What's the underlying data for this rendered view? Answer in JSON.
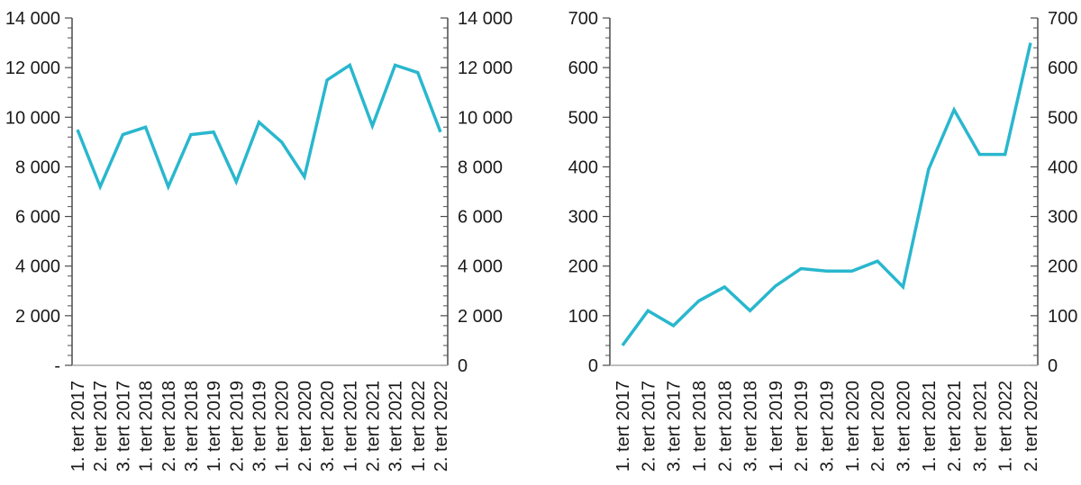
{
  "styles": {
    "line_color": "#29B7CE",
    "axis_color": "#4a4a4a",
    "tick_color": "#6e6e6e",
    "baseline_color": "#a9a9a9",
    "text_color": "#1a1a1a"
  },
  "chart_data": [
    {
      "type": "line",
      "title": "",
      "xlabel": "",
      "ylabel": "",
      "categories": [
        "1. tert 2017",
        "2. tert 2017",
        "3. tert 2017",
        "1. tert 2018",
        "2. tert 2018",
        "3. tert 2018",
        "1. tert 2019",
        "2. tert 2019",
        "3. tert 2019",
        "1. tert 2020",
        "2. tert 2020",
        "3. tert 2020",
        "1. tert 2021",
        "2. tert 2021",
        "3. tert 2021",
        "1. tert 2022",
        "2. tert 2022"
      ],
      "values": [
        9500,
        7200,
        9300,
        9600,
        7200,
        9300,
        9400,
        7400,
        9800,
        9000,
        7600,
        11500,
        12100,
        9650,
        12100,
        11800,
        9400
      ],
      "ylim": [
        0,
        14000
      ],
      "y_major_unit": 2000,
      "y_minor_unit": 400,
      "y_tick_labels_left": [
        "14 000",
        "12 000",
        "10 000",
        "8 000",
        "6 000",
        "4 000",
        "2 000",
        "-"
      ],
      "y_tick_labels_right": [
        "14 000",
        "12 000",
        "10 000",
        "8 000",
        "6 000",
        "4 000",
        "2 000",
        "0"
      ],
      "grid": false,
      "legend": "none"
    },
    {
      "type": "line",
      "title": "",
      "xlabel": "",
      "ylabel": "",
      "categories": [
        "1. tert 2017",
        "2. tert 2017",
        "3. tert 2017",
        "1. tert 2018",
        "2. tert 2018",
        "3. tert 2018",
        "1. tert 2019",
        "2. tert 2019",
        "3. tert 2019",
        "1. tert 2020",
        "2. tert 2020",
        "3. tert 2020",
        "1. tert 2021",
        "2. tert 2021",
        "3. tert 2021",
        "1. tert 2022",
        "2. tert 2022"
      ],
      "values": [
        40,
        110,
        80,
        130,
        158,
        110,
        160,
        195,
        190,
        190,
        210,
        158,
        395,
        515,
        425,
        425,
        650
      ],
      "ylim": [
        0,
        700
      ],
      "y_major_unit": 100,
      "y_minor_unit": 20,
      "y_tick_labels_left": [
        "700",
        "600",
        "500",
        "400",
        "300",
        "200",
        "100",
        "0"
      ],
      "y_tick_labels_right": [
        "700",
        "600",
        "500",
        "400",
        "300",
        "200",
        "100",
        "0"
      ],
      "grid": false,
      "legend": "none"
    }
  ]
}
